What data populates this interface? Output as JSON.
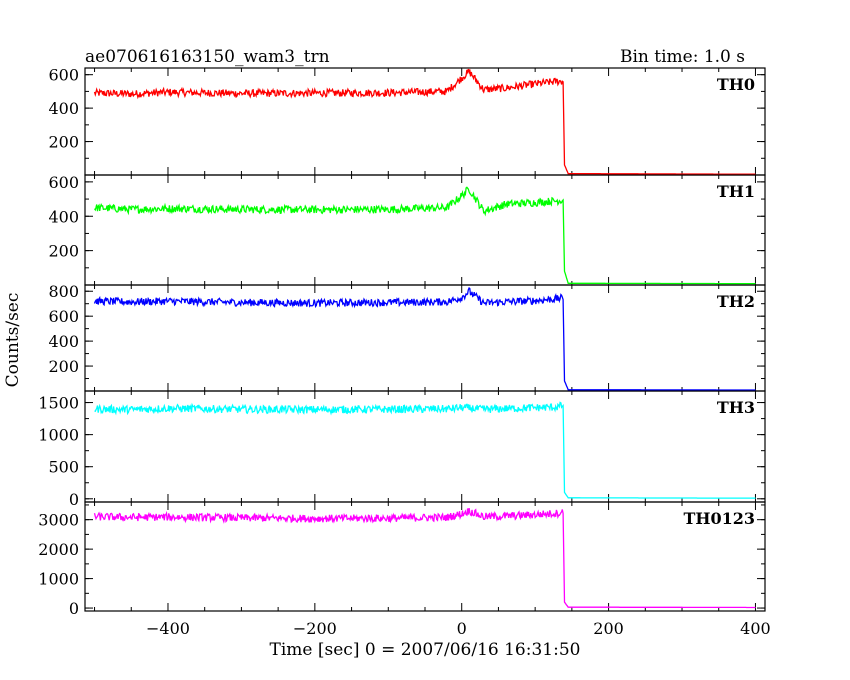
{
  "header": {
    "title": "ae070616163150_wam3_trn",
    "bin_label": "Bin time: 1.0 s"
  },
  "chart_data": {
    "type": "line",
    "xlabel": "Time [sec] 0 = 2007/06/16 16:31:50",
    "ylabel": "Counts/sec",
    "xlim": [
      -513,
      413
    ],
    "x_ticks": [
      -400,
      -200,
      0,
      200,
      400
    ],
    "grid": false,
    "panels": [
      {
        "name": "TH0",
        "color": "#ff0000",
        "ylim": [
          0,
          640
        ],
        "y_ticks": [
          200,
          400,
          600
        ],
        "y_tick_labels": [
          "200",
          "400",
          "600"
        ],
        "points": [
          [
            -500,
            490
          ],
          [
            -450,
            485
          ],
          [
            -400,
            495
          ],
          [
            -300,
            488
          ],
          [
            -200,
            490
          ],
          [
            -100,
            492
          ],
          [
            -20,
            500
          ],
          [
            0,
            580
          ],
          [
            10,
            620
          ],
          [
            30,
            510
          ],
          [
            60,
            520
          ],
          [
            100,
            545
          ],
          [
            130,
            560
          ],
          [
            138,
            560
          ],
          [
            140,
            60
          ],
          [
            145,
            8
          ],
          [
            400,
            5
          ]
        ]
      },
      {
        "name": "TH1",
        "color": "#00ff00",
        "ylim": [
          0,
          640
        ],
        "y_ticks": [
          200,
          400,
          600
        ],
        "y_tick_labels": [
          "200",
          "400",
          "600"
        ],
        "points": [
          [
            -500,
            450
          ],
          [
            -450,
            440
          ],
          [
            -400,
            445
          ],
          [
            -300,
            440
          ],
          [
            -200,
            438
          ],
          [
            -100,
            440
          ],
          [
            -20,
            450
          ],
          [
            0,
            520
          ],
          [
            10,
            560
          ],
          [
            30,
            430
          ],
          [
            60,
            470
          ],
          [
            100,
            480
          ],
          [
            130,
            490
          ],
          [
            138,
            495
          ],
          [
            140,
            80
          ],
          [
            145,
            10
          ],
          [
            400,
            8
          ]
        ]
      },
      {
        "name": "TH2",
        "color": "#0000ff",
        "ylim": [
          0,
          850
        ],
        "y_ticks": [
          200,
          400,
          600,
          800
        ],
        "y_tick_labels": [
          "200",
          "400",
          "600",
          "800"
        ],
        "points": [
          [
            -500,
            720
          ],
          [
            -450,
            715
          ],
          [
            -400,
            720
          ],
          [
            -300,
            710
          ],
          [
            -200,
            705
          ],
          [
            -100,
            710
          ],
          [
            -20,
            715
          ],
          [
            0,
            750
          ],
          [
            10,
            800
          ],
          [
            30,
            705
          ],
          [
            60,
            715
          ],
          [
            100,
            725
          ],
          [
            130,
            740
          ],
          [
            138,
            745
          ],
          [
            140,
            80
          ],
          [
            145,
            10
          ],
          [
            400,
            8
          ]
        ]
      },
      {
        "name": "TH3",
        "color": "#00ffff",
        "ylim": [
          -50,
          1680
        ],
        "y_ticks": [
          0,
          500,
          1000,
          1500
        ],
        "y_tick_labels": [
          "0",
          "500",
          "1000",
          "1500"
        ],
        "points": [
          [
            -500,
            1400
          ],
          [
            -450,
            1390
          ],
          [
            -400,
            1410
          ],
          [
            -300,
            1395
          ],
          [
            -200,
            1390
          ],
          [
            -100,
            1395
          ],
          [
            -20,
            1400
          ],
          [
            0,
            1420
          ],
          [
            30,
            1395
          ],
          [
            60,
            1405
          ],
          [
            100,
            1420
          ],
          [
            130,
            1430
          ],
          [
            138,
            1460
          ],
          [
            140,
            100
          ],
          [
            145,
            15
          ],
          [
            400,
            10
          ]
        ]
      },
      {
        "name": "TH0123",
        "color": "#ff00ff",
        "ylim": [
          -100,
          3600
        ],
        "y_ticks": [
          0,
          1000,
          2000,
          3000
        ],
        "y_tick_labels": [
          "0",
          "1000",
          "2000",
          "3000"
        ],
        "points": [
          [
            -500,
            3100
          ],
          [
            -450,
            3080
          ],
          [
            -400,
            3090
          ],
          [
            -300,
            3060
          ],
          [
            -200,
            3040
          ],
          [
            -100,
            3050
          ],
          [
            -20,
            3080
          ],
          [
            0,
            3200
          ],
          [
            10,
            3300
          ],
          [
            30,
            3100
          ],
          [
            60,
            3120
          ],
          [
            100,
            3170
          ],
          [
            130,
            3220
          ],
          [
            138,
            3250
          ],
          [
            140,
            200
          ],
          [
            145,
            30
          ],
          [
            400,
            20
          ]
        ]
      }
    ]
  }
}
